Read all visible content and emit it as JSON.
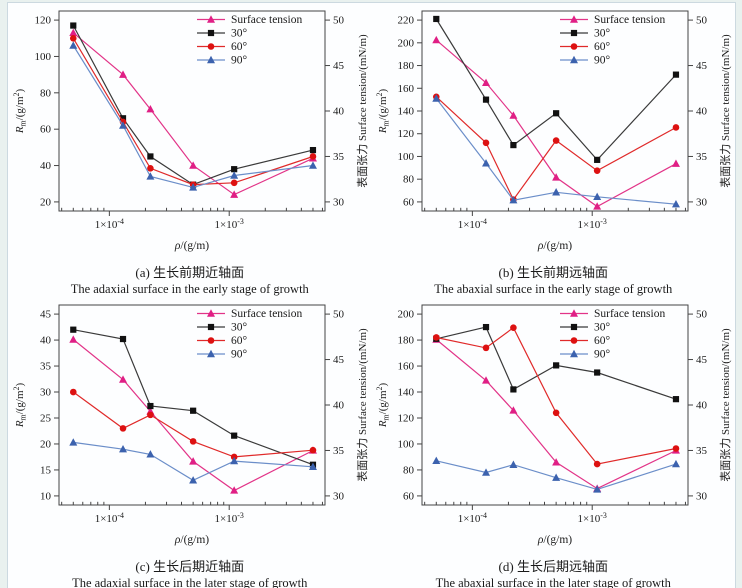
{
  "palette": {
    "page_background": "#e9f1ef",
    "panel_background": "#fdfeff",
    "panel_border": "#ccd9e0",
    "axis_color": "#444444"
  },
  "chart_data": [
    {
      "id": "a",
      "type": "line",
      "caption_zh": "(a) 生长前期近轴面",
      "caption_en": "The adaxial surface in the early stage of growth",
      "x_label": "$ρ$/(g/m)",
      "x_scale": "log",
      "x_range": [
        3.8e-05,
        0.0063
      ],
      "x_ticks": [
        {
          "v": 0.0001,
          "label": "1×10^{-4}"
        },
        {
          "v": 0.001,
          "label": "1×10^{-3}"
        }
      ],
      "x": [
        5e-05,
        0.00013,
        0.00022,
        0.0005,
        0.0011,
        0.005
      ],
      "left_axis": {
        "label": "$R$_{m}/(g/m^{2})",
        "ticks": [
          20,
          40,
          60,
          80,
          100,
          120
        ]
      },
      "right_axis": {
        "label": "表面张力 Surface tension/(mN/m)",
        "ticks": [
          30,
          35,
          40,
          45,
          50
        ]
      },
      "legend_position": "top-right",
      "series": [
        {
          "name": "Surface tension",
          "axis": "right",
          "marker": "triangle",
          "color": "#e01f85",
          "line": "#e23488",
          "values": [
            48.6,
            44.0,
            40.2,
            34.0,
            30.8,
            34.8
          ]
        },
        {
          "name": "30°",
          "axis": "left",
          "marker": "square",
          "color": "#111111",
          "line": "#3a3a3a",
          "values": [
            117,
            66,
            45,
            29.5,
            38,
            48.5
          ]
        },
        {
          "name": "60°",
          "axis": "left",
          "marker": "circle",
          "color": "#dd1111",
          "line": "#e02a2a",
          "values": [
            110,
            64,
            38.5,
            29.5,
            30.5,
            45
          ]
        },
        {
          "name": "90°",
          "axis": "left",
          "marker": "triangle",
          "color": "#3c62ae",
          "line": "#6b8ec9",
          "values": [
            106,
            62,
            34,
            28,
            34.5,
            40
          ]
        }
      ]
    },
    {
      "id": "b",
      "type": "line",
      "caption_zh": "(b) 生长前期远轴面",
      "caption_en": "The abaxial surface in the early stage of growth",
      "x_label": "$ρ$/(g/m)",
      "x_scale": "log",
      "x_range": [
        3.8e-05,
        0.0063
      ],
      "x_ticks": [
        {
          "v": 0.0001,
          "label": "1×10^{-4}"
        },
        {
          "v": 0.001,
          "label": "1×10^{-3}"
        }
      ],
      "x": [
        5e-05,
        0.00013,
        0.00022,
        0.0005,
        0.0011,
        0.005
      ],
      "left_axis": {
        "label": "$R$_{m}/(g/m^{2})",
        "ticks": [
          60,
          80,
          100,
          120,
          140,
          160,
          180,
          200,
          220
        ]
      },
      "right_axis": {
        "label": "表面张力 Surface tension/(mN/m)",
        "ticks": [
          30,
          35,
          40,
          45,
          50
        ]
      },
      "legend_position": "top-right",
      "series": [
        {
          "name": "Surface tension",
          "axis": "right",
          "marker": "triangle",
          "color": "#e01f85",
          "line": "#e23488",
          "values": [
            47.8,
            43.1,
            39.5,
            32.7,
            29.5,
            34.2
          ]
        },
        {
          "name": "30°",
          "axis": "left",
          "marker": "square",
          "color": "#111111",
          "line": "#3a3a3a",
          "values": [
            221,
            150,
            110,
            138,
            97,
            172
          ]
        },
        {
          "name": "60°",
          "axis": "left",
          "marker": "circle",
          "color": "#dd1111",
          "line": "#e02a2a",
          "values": [
            152.5,
            112,
            62,
            114,
            87.5,
            125.5
          ]
        },
        {
          "name": "90°",
          "axis": "left",
          "marker": "triangle",
          "color": "#3c62ae",
          "line": "#6b8ec9",
          "values": [
            151,
            94,
            61.5,
            68.5,
            64.5,
            58
          ]
        }
      ]
    },
    {
      "id": "c",
      "type": "line",
      "caption_zh": "(c) 生长后期近轴面",
      "caption_en": "The adaxial surface in the later stage of growth",
      "x_label": "$ρ$/(g/m)",
      "x_scale": "log",
      "x_range": [
        3.8e-05,
        0.0063
      ],
      "x_ticks": [
        {
          "v": 0.0001,
          "label": "1×10^{-4}"
        },
        {
          "v": 0.001,
          "label": "1×10^{-3}"
        }
      ],
      "x": [
        5e-05,
        0.00013,
        0.00022,
        0.0005,
        0.0011,
        0.005
      ],
      "left_axis": {
        "label": "$R$_{m}/(g/m^{2})",
        "ticks": [
          10,
          15,
          20,
          25,
          30,
          35,
          40,
          45
        ]
      },
      "right_axis": {
        "label": "表面张力 Surface tension/(mN/m)",
        "ticks": [
          30,
          35,
          40,
          45,
          50
        ]
      },
      "legend_position": "top-right",
      "series": [
        {
          "name": "Surface tension",
          "axis": "right",
          "marker": "triangle",
          "color": "#e01f85",
          "line": "#e23488",
          "values": [
            47.2,
            42.8,
            39.3,
            33.8,
            30.6,
            35.0
          ]
        },
        {
          "name": "30°",
          "axis": "left",
          "marker": "square",
          "color": "#111111",
          "line": "#3a3a3a",
          "values": [
            42,
            40.2,
            27.3,
            26.4,
            21.6,
            16
          ]
        },
        {
          "name": "60°",
          "axis": "left",
          "marker": "circle",
          "color": "#dd1111",
          "line": "#e02a2a",
          "values": [
            30,
            23,
            25.6,
            20.5,
            17.5,
            18.8
          ]
        },
        {
          "name": "90°",
          "axis": "left",
          "marker": "triangle",
          "color": "#3c62ae",
          "line": "#6b8ec9",
          "values": [
            20.3,
            19,
            18,
            13,
            16.7,
            15.6
          ]
        }
      ]
    },
    {
      "id": "d",
      "type": "line",
      "caption_zh": "(d) 生长后期远轴面",
      "caption_en": "The abaxial surface in the later stage of growth",
      "x_label": "$ρ$/(g/m)",
      "x_scale": "log",
      "x_range": [
        3.8e-05,
        0.0063
      ],
      "x_ticks": [
        {
          "v": 0.0001,
          "label": "1×10^{-4}"
        },
        {
          "v": 0.001,
          "label": "1×10^{-3}"
        }
      ],
      "x": [
        5e-05,
        0.00013,
        0.00022,
        0.0005,
        0.0011,
        0.005
      ],
      "left_axis": {
        "label": "$R$_{m}/(g/m^{2})",
        "ticks": [
          60,
          80,
          100,
          120,
          140,
          160,
          180,
          200
        ]
      },
      "right_axis": {
        "label": "表面张力 Surface tension/(mN/m)",
        "ticks": [
          30,
          35,
          40,
          45,
          50
        ]
      },
      "legend_position": "top-right",
      "series": [
        {
          "name": "Surface tension",
          "axis": "right",
          "marker": "triangle",
          "color": "#e01f85",
          "line": "#e23488",
          "values": [
            47.2,
            42.7,
            39.4,
            33.7,
            30.8,
            35.0
          ]
        },
        {
          "name": "30°",
          "axis": "left",
          "marker": "square",
          "color": "#111111",
          "line": "#3a3a3a",
          "values": [
            181,
            190,
            142,
            160.5,
            155,
            134.5
          ]
        },
        {
          "name": "60°",
          "axis": "left",
          "marker": "circle",
          "color": "#dd1111",
          "line": "#e02a2a",
          "values": [
            182,
            174,
            189.5,
            124,
            84.5,
            96.5
          ]
        },
        {
          "name": "90°",
          "axis": "left",
          "marker": "triangle",
          "color": "#3c62ae",
          "line": "#6b8ec9",
          "values": [
            87,
            78,
            84,
            74,
            65,
            84.5
          ]
        }
      ]
    }
  ]
}
